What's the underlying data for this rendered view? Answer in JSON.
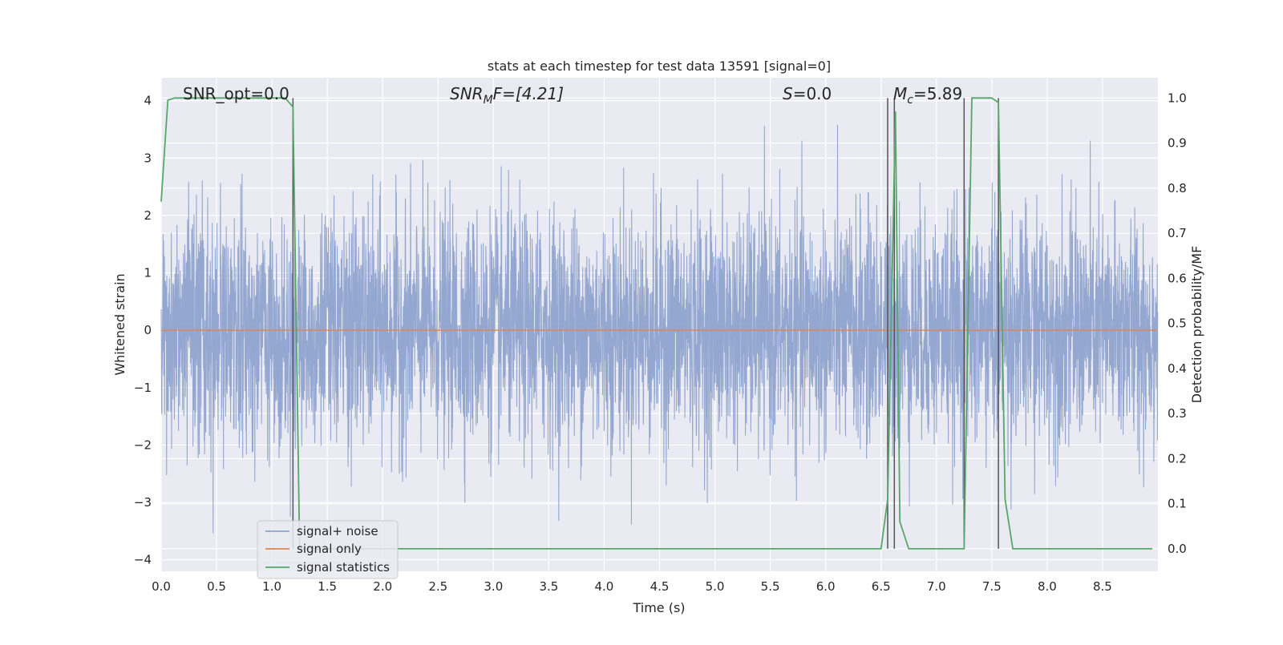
{
  "chart_data": {
    "type": "line",
    "title": "stats at each timestep for test data 13591 [signal=0]",
    "xlabel": "Time (s)",
    "ylabel": "Whitened strain",
    "ylabel_right": "Detection probability/MF",
    "xlim": [
      0.0,
      9.0
    ],
    "ylim": [
      -4.2,
      4.4
    ],
    "ylim_right": [
      -0.05,
      1.045
    ],
    "x_ticks": [
      0.0,
      0.5,
      1.0,
      1.5,
      2.0,
      2.5,
      3.0,
      3.5,
      4.0,
      4.5,
      5.0,
      5.5,
      6.0,
      6.5,
      7.0,
      7.5,
      8.0,
      8.5
    ],
    "x_tick_labels": [
      "0.0",
      "0.5",
      "1.0",
      "1.5",
      "2.0",
      "2.5",
      "3.0",
      "3.5",
      "4.0",
      "4.5",
      "5.0",
      "5.5",
      "6.0",
      "6.5",
      "7.0",
      "7.5",
      "8.0",
      "8.5"
    ],
    "y_ticks": [
      4,
      3,
      2,
      1,
      0,
      -1,
      -2,
      -3,
      -4
    ],
    "y_tick_labels": [
      "4",
      "3",
      "2",
      "1",
      "0",
      "−1",
      "−2",
      "−3",
      "−4"
    ],
    "y_ticks_right": [
      1.0,
      0.9,
      0.8,
      0.7,
      0.6,
      0.5,
      0.4,
      0.3,
      0.2,
      0.1,
      0.0
    ],
    "y_tick_labels_right": [
      "1.0",
      "0.9",
      "0.8",
      "0.7",
      "0.6",
      "0.5",
      "0.4",
      "0.3",
      "0.2",
      "0.1",
      "0.0"
    ],
    "grid": true,
    "legend_position": "lower-left",
    "annotations": {
      "snr_opt": "SNR_opt=0.0",
      "snr_mf_main": "SNR",
      "snr_mf_sub": "M",
      "snr_mf_rest": "F=[4.21]",
      "s_main": "S",
      "s_rest": "=0.0",
      "mc_main": "M",
      "mc_sub": "c",
      "mc_rest": "=5.89"
    },
    "series": [
      {
        "name": "signal+ noise",
        "color": "#8fa3cd",
        "axis": "left",
        "kind": "noise",
        "sample_rate": 512,
        "sigma": 1.0,
        "peak_abs": 4.0,
        "min_value": -3.8
      },
      {
        "name": "signal only",
        "color": "#dd8452",
        "axis": "left",
        "x": [
          0.0,
          8.99
        ],
        "y": [
          0.0,
          0.0
        ]
      },
      {
        "name": "signal statistics",
        "color": "#55a868",
        "axis": "right",
        "x": [
          0.0,
          0.06,
          0.12,
          0.5,
          1.0,
          1.12,
          1.19,
          1.25,
          1.9,
          2.5,
          3.0,
          4.0,
          5.0,
          6.0,
          6.5,
          6.56,
          6.63,
          6.67,
          6.75,
          6.9,
          7.25,
          7.32,
          7.38,
          7.5,
          7.56,
          7.62,
          7.69,
          7.8,
          8.5,
          8.95
        ],
        "y": [
          0.77,
          0.995,
          1.0,
          1.0,
          1.0,
          1.0,
          0.98,
          0.0,
          0.0,
          0.0,
          0.0,
          0.0,
          0.0,
          0.0,
          0.0,
          0.11,
          0.97,
          0.06,
          0.0,
          0.0,
          0.0,
          1.0,
          1.0,
          1.0,
          0.99,
          0.11,
          0.0,
          0.0,
          0.0,
          0.0
        ]
      }
    ],
    "detection_markers": {
      "color": "#555555",
      "x": [
        1.19,
        6.56,
        6.62,
        7.25,
        7.56
      ]
    }
  }
}
